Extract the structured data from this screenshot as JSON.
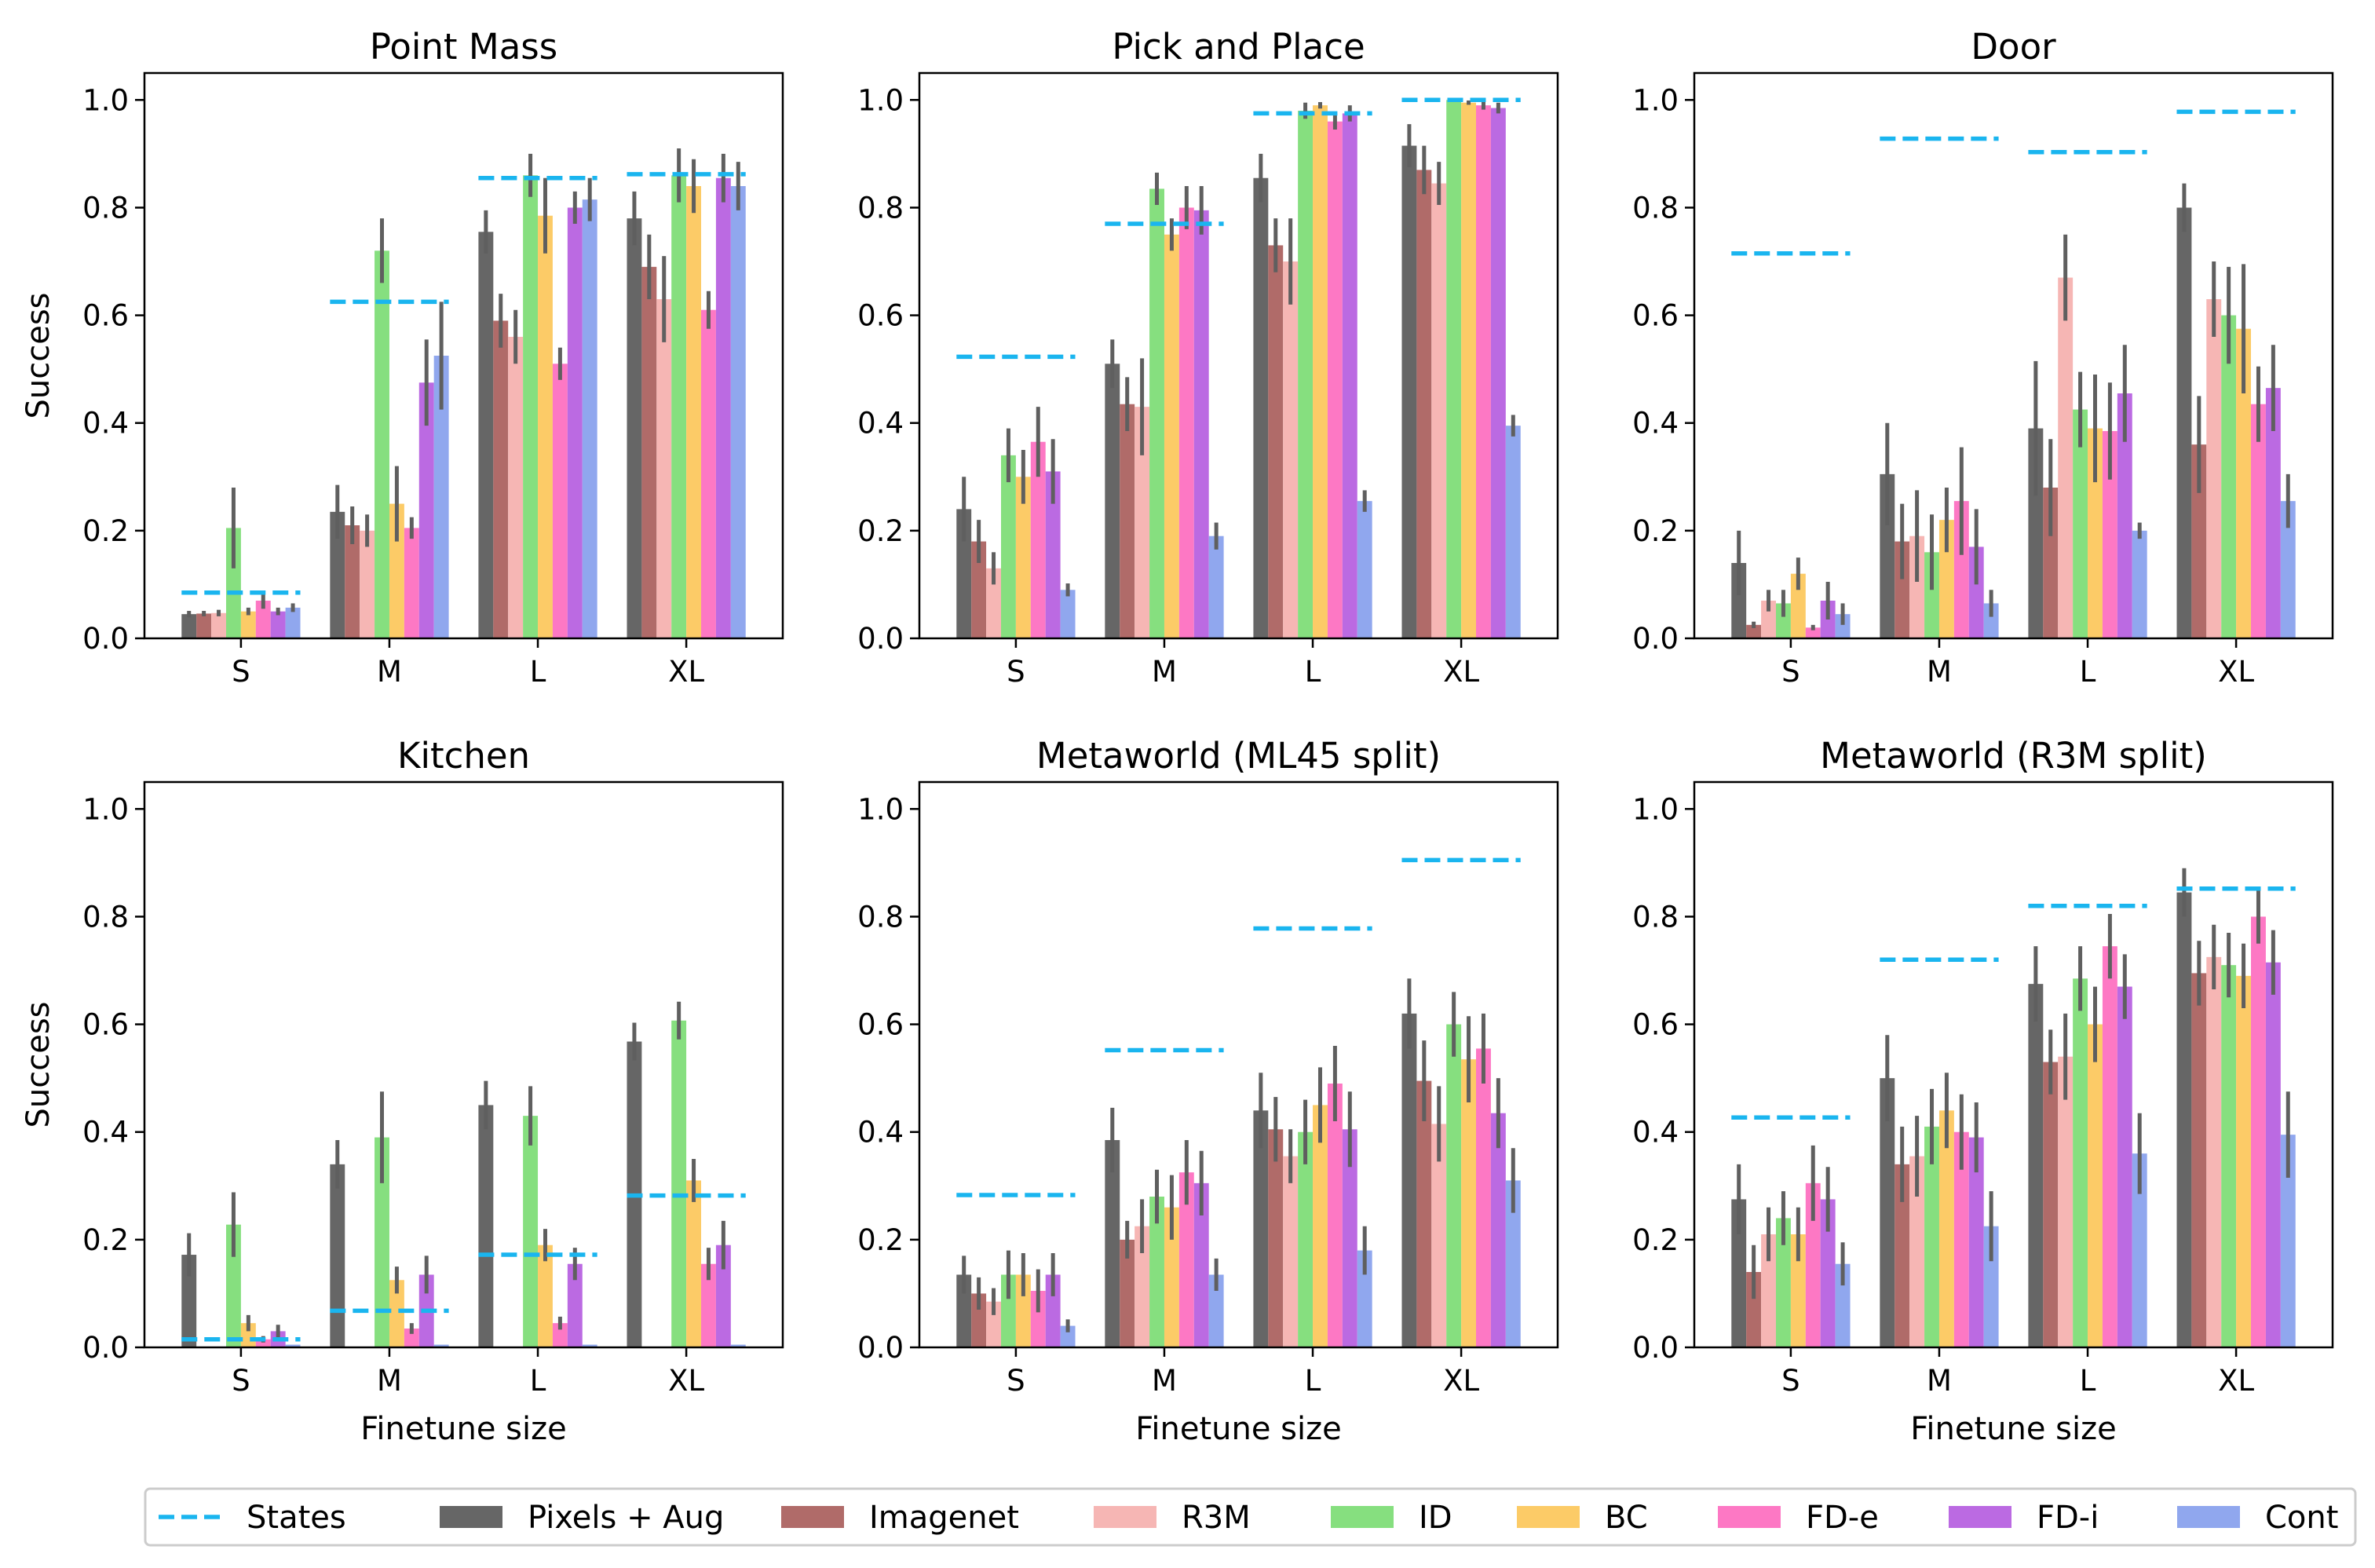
{
  "legend": [
    {
      "key": "states",
      "label": "States",
      "color": "#1ab5ef",
      "kind": "dashed-line"
    },
    {
      "key": "pixels_aug",
      "label": "Pixels + Aug",
      "color": "#666666",
      "kind": "bar"
    },
    {
      "key": "imagenet",
      "label": "Imagenet",
      "color": "#b06b69",
      "kind": "bar"
    },
    {
      "key": "r3m",
      "label": "R3M",
      "color": "#f6b6b4",
      "kind": "bar"
    },
    {
      "key": "id",
      "label": "ID",
      "color": "#86df7f",
      "kind": "bar"
    },
    {
      "key": "bc",
      "label": "BC",
      "color": "#fccb67",
      "kind": "bar"
    },
    {
      "key": "fd_e",
      "label": "FD-e",
      "color": "#fd78c4",
      "kind": "bar"
    },
    {
      "key": "fd_i",
      "label": "FD-i",
      "color": "#bb6ae2",
      "kind": "bar"
    },
    {
      "key": "cont",
      "label": "Cont",
      "color": "#90a7ee",
      "kind": "bar"
    }
  ],
  "chart_data": [
    {
      "type": "bar",
      "title": "Point Mass",
      "categories": [
        "S",
        "M",
        "L",
        "XL"
      ],
      "xlabel": "",
      "ylabel": "Success",
      "ylim": [
        0,
        1.05
      ],
      "yticks": [
        "0.0",
        "0.2",
        "0.4",
        "0.6",
        "0.8",
        "1.0"
      ],
      "states": [
        0.085,
        0.625,
        0.855,
        0.862
      ],
      "series": [
        {
          "name": "Pixels + Aug",
          "values": [
            0.045,
            0.235,
            0.755,
            0.78
          ],
          "err": [
            0.006,
            0.05,
            0.04,
            0.05
          ]
        },
        {
          "name": "Imagenet",
          "values": [
            0.046,
            0.21,
            0.59,
            0.69
          ],
          "err": [
            0.005,
            0.035,
            0.05,
            0.06
          ]
        },
        {
          "name": "R3M",
          "values": [
            0.047,
            0.2,
            0.56,
            0.63
          ],
          "err": [
            0.006,
            0.03,
            0.05,
            0.08
          ]
        },
        {
          "name": "ID",
          "values": [
            0.205,
            0.72,
            0.86,
            0.86
          ],
          "err": [
            0.075,
            0.06,
            0.04,
            0.05
          ]
        },
        {
          "name": "BC",
          "values": [
            0.05,
            0.25,
            0.785,
            0.84
          ],
          "err": [
            0.007,
            0.07,
            0.07,
            0.05
          ]
        },
        {
          "name": "FD-e",
          "values": [
            0.07,
            0.205,
            0.51,
            0.61
          ],
          "err": [
            0.015,
            0.02,
            0.03,
            0.035
          ]
        },
        {
          "name": "FD-i",
          "values": [
            0.05,
            0.475,
            0.8,
            0.855
          ],
          "err": [
            0.007,
            0.08,
            0.03,
            0.045
          ]
        },
        {
          "name": "Cont",
          "values": [
            0.057,
            0.525,
            0.815,
            0.84
          ],
          "err": [
            0.008,
            0.1,
            0.04,
            0.045
          ]
        }
      ]
    },
    {
      "type": "bar",
      "title": "Pick and Place",
      "categories": [
        "S",
        "M",
        "L",
        "XL"
      ],
      "xlabel": "",
      "ylabel": "",
      "ylim": [
        0,
        1.05
      ],
      "yticks": [
        "0.0",
        "0.2",
        "0.4",
        "0.6",
        "0.8",
        "1.0"
      ],
      "states": [
        0.523,
        0.77,
        0.975,
        1.0
      ],
      "series": [
        {
          "name": "Pixels + Aug",
          "values": [
            0.24,
            0.51,
            0.855,
            0.915
          ],
          "err": [
            0.06,
            0.045,
            0.045,
            0.04
          ]
        },
        {
          "name": "Imagenet",
          "values": [
            0.18,
            0.435,
            0.73,
            0.87
          ],
          "err": [
            0.04,
            0.05,
            0.05,
            0.045
          ]
        },
        {
          "name": "R3M",
          "values": [
            0.13,
            0.43,
            0.7,
            0.845
          ],
          "err": [
            0.03,
            0.09,
            0.08,
            0.04
          ]
        },
        {
          "name": "ID",
          "values": [
            0.34,
            0.835,
            0.98,
            1.0
          ],
          "err": [
            0.05,
            0.03,
            0.015,
            0.003
          ]
        },
        {
          "name": "BC",
          "values": [
            0.3,
            0.75,
            0.99,
            0.995
          ],
          "err": [
            0.05,
            0.03,
            0.006,
            0.004
          ]
        },
        {
          "name": "FD-e",
          "values": [
            0.365,
            0.8,
            0.96,
            0.99
          ],
          "err": [
            0.065,
            0.04,
            0.015,
            0.008
          ]
        },
        {
          "name": "FD-i",
          "values": [
            0.31,
            0.795,
            0.975,
            0.985
          ],
          "err": [
            0.06,
            0.045,
            0.015,
            0.01
          ]
        },
        {
          "name": "Cont",
          "values": [
            0.09,
            0.19,
            0.255,
            0.395
          ],
          "err": [
            0.012,
            0.025,
            0.02,
            0.02
          ]
        }
      ]
    },
    {
      "type": "bar",
      "title": "Door",
      "categories": [
        "S",
        "M",
        "L",
        "XL"
      ],
      "xlabel": "",
      "ylabel": "",
      "ylim": [
        0,
        1.05
      ],
      "yticks": [
        "0.0",
        "0.2",
        "0.4",
        "0.6",
        "0.8",
        "1.0"
      ],
      "states": [
        0.715,
        0.928,
        0.903,
        0.978
      ],
      "series": [
        {
          "name": "Pixels + Aug",
          "values": [
            0.14,
            0.305,
            0.39,
            0.8
          ],
          "err": [
            0.06,
            0.095,
            0.125,
            0.045
          ]
        },
        {
          "name": "Imagenet",
          "values": [
            0.025,
            0.18,
            0.28,
            0.36
          ],
          "err": [
            0.006,
            0.07,
            0.09,
            0.09
          ]
        },
        {
          "name": "R3M",
          "values": [
            0.07,
            0.19,
            0.67,
            0.63
          ],
          "err": [
            0.02,
            0.085,
            0.08,
            0.07
          ]
        },
        {
          "name": "ID",
          "values": [
            0.065,
            0.16,
            0.425,
            0.6
          ],
          "err": [
            0.025,
            0.07,
            0.07,
            0.09
          ]
        },
        {
          "name": "BC",
          "values": [
            0.12,
            0.22,
            0.39,
            0.575
          ],
          "err": [
            0.03,
            0.06,
            0.1,
            0.12
          ]
        },
        {
          "name": "FD-e",
          "values": [
            0.02,
            0.255,
            0.385,
            0.435
          ],
          "err": [
            0.005,
            0.1,
            0.09,
            0.07
          ]
        },
        {
          "name": "FD-i",
          "values": [
            0.07,
            0.17,
            0.455,
            0.465
          ],
          "err": [
            0.035,
            0.07,
            0.09,
            0.08
          ]
        },
        {
          "name": "Cont",
          "values": [
            0.045,
            0.065,
            0.2,
            0.255
          ],
          "err": [
            0.02,
            0.025,
            0.015,
            0.05
          ]
        }
      ]
    },
    {
      "type": "bar",
      "title": "Kitchen",
      "categories": [
        "S",
        "M",
        "L",
        "XL"
      ],
      "xlabel": "Finetune size",
      "ylabel": "Success",
      "ylim": [
        0,
        1.05
      ],
      "yticks": [
        "0.0",
        "0.2",
        "0.4",
        "0.6",
        "0.8",
        "1.0"
      ],
      "states": [
        0.015,
        0.068,
        0.172,
        0.282
      ],
      "series": [
        {
          "name": "Pixels + Aug",
          "values": [
            0.172,
            0.34,
            0.45,
            0.568
          ],
          "err": [
            0.04,
            0.045,
            0.045,
            0.035
          ]
        },
        {
          "name": "Imagenet",
          "values": [
            0.0,
            0.0,
            0.0,
            0.0
          ],
          "err": [
            0,
            0,
            0,
            0
          ]
        },
        {
          "name": "R3M",
          "values": [
            0.0,
            0.0,
            0.0,
            0.0
          ],
          "err": [
            0,
            0,
            0,
            0
          ]
        },
        {
          "name": "ID",
          "values": [
            0.228,
            0.39,
            0.43,
            0.607
          ],
          "err": [
            0.06,
            0.085,
            0.055,
            0.035
          ]
        },
        {
          "name": "BC",
          "values": [
            0.045,
            0.125,
            0.19,
            0.31
          ],
          "err": [
            0.015,
            0.025,
            0.03,
            0.04
          ]
        },
        {
          "name": "FD-e",
          "values": [
            0.015,
            0.035,
            0.045,
            0.155
          ],
          "err": [
            0.006,
            0.01,
            0.012,
            0.03
          ]
        },
        {
          "name": "FD-i",
          "values": [
            0.03,
            0.135,
            0.155,
            0.19
          ],
          "err": [
            0.012,
            0.035,
            0.03,
            0.045
          ]
        },
        {
          "name": "Cont",
          "values": [
            0.005,
            0.005,
            0.005,
            0.005
          ],
          "err": [
            0,
            0,
            0,
            0
          ]
        }
      ]
    },
    {
      "type": "bar",
      "title": "Metaworld (ML45 split)",
      "categories": [
        "S",
        "M",
        "L",
        "XL"
      ],
      "xlabel": "Finetune size",
      "ylabel": "",
      "ylim": [
        0,
        1.05
      ],
      "yticks": [
        "0.0",
        "0.2",
        "0.4",
        "0.6",
        "0.8",
        "1.0"
      ],
      "states": [
        0.283,
        0.552,
        0.778,
        0.905
      ],
      "series": [
        {
          "name": "Pixels + Aug",
          "values": [
            0.135,
            0.385,
            0.44,
            0.62
          ],
          "err": [
            0.035,
            0.06,
            0.07,
            0.065
          ]
        },
        {
          "name": "Imagenet",
          "values": [
            0.1,
            0.2,
            0.405,
            0.495
          ],
          "err": [
            0.03,
            0.035,
            0.06,
            0.075
          ]
        },
        {
          "name": "R3M",
          "values": [
            0.085,
            0.225,
            0.355,
            0.415
          ],
          "err": [
            0.025,
            0.05,
            0.05,
            0.07
          ]
        },
        {
          "name": "ID",
          "values": [
            0.135,
            0.28,
            0.4,
            0.6
          ],
          "err": [
            0.045,
            0.05,
            0.06,
            0.06
          ]
        },
        {
          "name": "BC",
          "values": [
            0.135,
            0.26,
            0.45,
            0.535
          ],
          "err": [
            0.04,
            0.06,
            0.07,
            0.08
          ]
        },
        {
          "name": "FD-e",
          "values": [
            0.105,
            0.325,
            0.49,
            0.555
          ],
          "err": [
            0.04,
            0.06,
            0.07,
            0.065
          ]
        },
        {
          "name": "FD-i",
          "values": [
            0.135,
            0.305,
            0.405,
            0.435
          ],
          "err": [
            0.04,
            0.06,
            0.07,
            0.065
          ]
        },
        {
          "name": "Cont",
          "values": [
            0.04,
            0.135,
            0.18,
            0.31
          ],
          "err": [
            0.012,
            0.03,
            0.045,
            0.06
          ]
        }
      ]
    },
    {
      "type": "bar",
      "title": "Metaworld (R3M split)",
      "categories": [
        "S",
        "M",
        "L",
        "XL"
      ],
      "xlabel": "Finetune size",
      "ylabel": "",
      "ylim": [
        0,
        1.05
      ],
      "yticks": [
        "0.0",
        "0.2",
        "0.4",
        "0.6",
        "0.8",
        "1.0"
      ],
      "states": [
        0.427,
        0.72,
        0.82,
        0.852
      ],
      "series": [
        {
          "name": "Pixels + Aug",
          "values": [
            0.275,
            0.5,
            0.675,
            0.845
          ],
          "err": [
            0.065,
            0.08,
            0.07,
            0.045
          ]
        },
        {
          "name": "Imagenet",
          "values": [
            0.14,
            0.34,
            0.53,
            0.695
          ],
          "err": [
            0.05,
            0.07,
            0.06,
            0.06
          ]
        },
        {
          "name": "R3M",
          "values": [
            0.21,
            0.355,
            0.54,
            0.725
          ],
          "err": [
            0.05,
            0.075,
            0.08,
            0.06
          ]
        },
        {
          "name": "ID",
          "values": [
            0.24,
            0.41,
            0.685,
            0.71
          ],
          "err": [
            0.05,
            0.07,
            0.06,
            0.06
          ]
        },
        {
          "name": "BC",
          "values": [
            0.21,
            0.44,
            0.6,
            0.69
          ],
          "err": [
            0.05,
            0.07,
            0.07,
            0.06
          ]
        },
        {
          "name": "FD-e",
          "values": [
            0.305,
            0.4,
            0.745,
            0.8
          ],
          "err": [
            0.07,
            0.07,
            0.06,
            0.05
          ]
        },
        {
          "name": "FD-i",
          "values": [
            0.275,
            0.39,
            0.67,
            0.715
          ],
          "err": [
            0.06,
            0.065,
            0.06,
            0.06
          ]
        },
        {
          "name": "Cont",
          "values": [
            0.155,
            0.225,
            0.36,
            0.395
          ],
          "err": [
            0.04,
            0.065,
            0.075,
            0.08
          ]
        }
      ]
    }
  ]
}
